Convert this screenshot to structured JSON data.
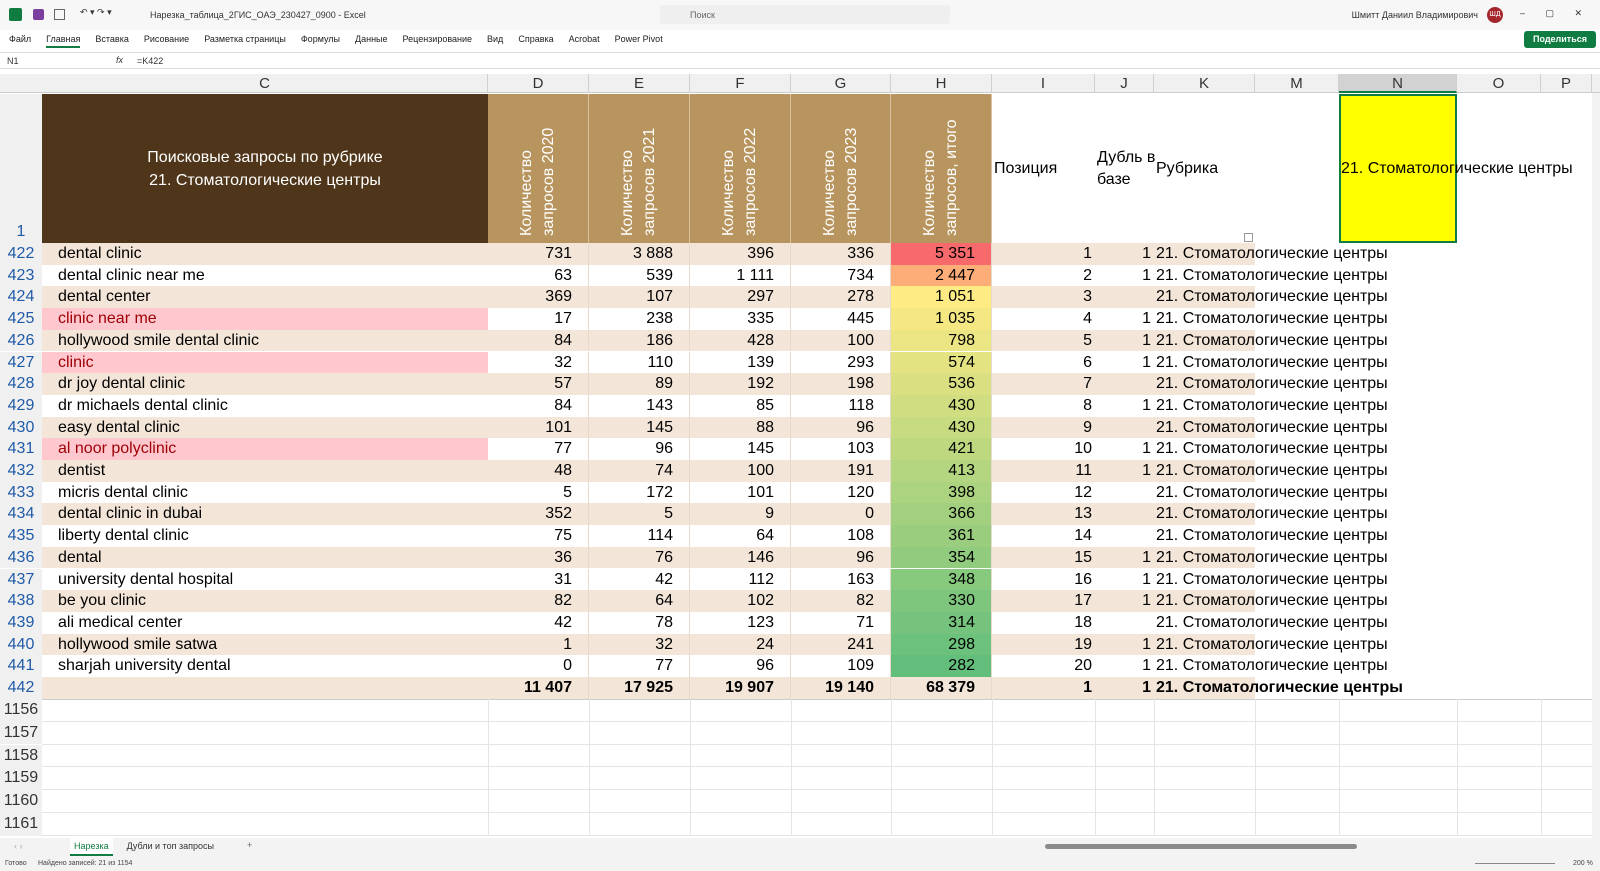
{
  "window": {
    "filename": "Нарезка_таблица_2ГИС_ОАЭ_230427_0900 - Excel",
    "search": "Поиск",
    "user": "Шмитт Даниил Владимирович",
    "initials": "ШД"
  },
  "ribbon": {
    "tabs": [
      "Файл",
      "Главная",
      "Вставка",
      "Рисование",
      "Разметка страницы",
      "Формулы",
      "Данные",
      "Рецензирование",
      "Вид",
      "Справка",
      "Acrobat",
      "Power Pivot"
    ],
    "share": "Поделиться"
  },
  "formula_bar": {
    "name_box": "N1",
    "fx": "fx",
    "formula": "=K422"
  },
  "columns": [
    "C",
    "D",
    "E",
    "F",
    "G",
    "H",
    "I",
    "J",
    "K",
    "M",
    "N",
    "O",
    "P"
  ],
  "header": {
    "row": 1,
    "title_lines": [
      "Поисковые запросы по рубрике",
      "21. Стоматологические центры"
    ],
    "counts": [
      "Количество запросов 2020",
      "Количество запросов 2021",
      "Количество запросов 2022",
      "Количество запросов 2023",
      "Количество запросов, итого"
    ],
    "position": "Позиция",
    "duplicate": "Дубль в базе",
    "rubric": "Рубрика",
    "selected": "21. Стоматологические центры"
  },
  "rows": [
    {
      "row": 422,
      "query": "dental clinic",
      "counts": [
        731,
        "3 888",
        396,
        336,
        "5 351"
      ],
      "position": 1,
      "duplicate": 1,
      "rubric": "21. Стоматологические центры"
    },
    {
      "row": 423,
      "query": "dental clinic near me",
      "counts": [
        63,
        539,
        "1 111",
        734,
        "2 447"
      ],
      "position": 2,
      "duplicate": 1,
      "rubric": "21. Стоматологические центры"
    },
    {
      "row": 424,
      "query": "dental center",
      "counts": [
        369,
        107,
        297,
        278,
        "1 051"
      ],
      "position": 3,
      "rubric": "21. Стоматологические центры"
    },
    {
      "row": 425,
      "query": "clinic near me",
      "highlight": true,
      "counts": [
        17,
        238,
        335,
        445,
        "1 035"
      ],
      "position": 4,
      "duplicate": 1,
      "rubric": "21. Стоматологические центры"
    },
    {
      "row": 426,
      "query": "hollywood smile dental clinic",
      "counts": [
        84,
        186,
        428,
        100,
        798
      ],
      "position": 5,
      "duplicate": 1,
      "rubric": "21. Стоматологические центры"
    },
    {
      "row": 427,
      "query": "clinic",
      "highlight": true,
      "counts": [
        32,
        110,
        139,
        293,
        574
      ],
      "position": 6,
      "duplicate": 1,
      "rubric": "21. Стоматологические центры"
    },
    {
      "row": 428,
      "query": "dr joy dental clinic",
      "counts": [
        57,
        89,
        192,
        198,
        536
      ],
      "position": 7,
      "rubric": "21. Стоматологические центры"
    },
    {
      "row": 429,
      "query": "dr michaels dental clinic",
      "counts": [
        84,
        143,
        85,
        118,
        430
      ],
      "position": 8,
      "duplicate": 1,
      "rubric": "21. Стоматологические центры"
    },
    {
      "row": 430,
      "query": "easy dental clinic",
      "counts": [
        101,
        145,
        88,
        96,
        430
      ],
      "position": 9,
      "rubric": "21. Стоматологические центры"
    },
    {
      "row": 431,
      "query": "al noor polyclinic",
      "highlight": true,
      "counts": [
        77,
        96,
        145,
        103,
        421
      ],
      "position": 10,
      "duplicate": 1,
      "rubric": "21. Стоматологические центры"
    },
    {
      "row": 432,
      "query": "dentist",
      "counts": [
        48,
        74,
        100,
        191,
        413
      ],
      "position": 11,
      "duplicate": 1,
      "rubric": "21. Стоматологические центры"
    },
    {
      "row": 433,
      "query": "micris dental clinic",
      "counts": [
        5,
        172,
        101,
        120,
        398
      ],
      "position": 12,
      "rubric": "21. Стоматологические центры"
    },
    {
      "row": 434,
      "query": "dental clinic in dubai",
      "counts": [
        352,
        5,
        9,
        0,
        366
      ],
      "position": 13,
      "rubric": "21. Стоматологические центры"
    },
    {
      "row": 435,
      "query": "liberty dental clinic",
      "counts": [
        75,
        114,
        64,
        108,
        361
      ],
      "position": 14,
      "rubric": "21. Стоматологические центры"
    },
    {
      "row": 436,
      "query": "dental",
      "counts": [
        36,
        76,
        146,
        96,
        354
      ],
      "position": 15,
      "duplicate": 1,
      "rubric": "21. Стоматологические центры"
    },
    {
      "row": 437,
      "query": "university dental hospital",
      "counts": [
        31,
        42,
        112,
        163,
        348
      ],
      "position": 16,
      "duplicate": 1,
      "rubric": "21. Стоматологические центры"
    },
    {
      "row": 438,
      "query": "be you clinic",
      "counts": [
        82,
        64,
        102,
        82,
        330
      ],
      "position": 17,
      "duplicate": 1,
      "rubric": "21. Стоматологические центры"
    },
    {
      "row": 439,
      "query": "ali medical center",
      "counts": [
        42,
        78,
        123,
        71,
        314
      ],
      "position": 18,
      "rubric": "21. Стоматологические центры"
    },
    {
      "row": 440,
      "query": "hollywood smile satwa",
      "counts": [
        1,
        32,
        24,
        241,
        298
      ],
      "position": 19,
      "duplicate": 1,
      "rubric": "21. Стоматологические центры"
    },
    {
      "row": 441,
      "query": "sharjah university dental",
      "counts": [
        0,
        77,
        96,
        109,
        282
      ],
      "position": 20,
      "duplicate": 1,
      "rubric": "21. Стоматологические центры"
    }
  ],
  "total": {
    "row": 442,
    "counts": [
      "11 407",
      "17 925",
      "19 907",
      "19 140",
      "68 379"
    ],
    "position": 1,
    "duplicate": 1,
    "rubric": "21. Стоматологические центры"
  },
  "empty_rows": [
    1156,
    1157,
    1158,
    1159,
    1160,
    1161
  ],
  "sheets": [
    "Нарезка",
    "Дубли и топ запросы"
  ],
  "status": {
    "ready": "Готово",
    "found": "Найдено записей: 21 из 1154",
    "zoom": "200 %"
  }
}
